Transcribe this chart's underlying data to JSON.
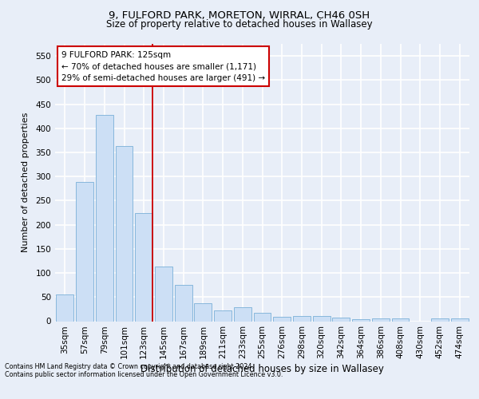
{
  "title1": "9, FULFORD PARK, MORETON, WIRRAL, CH46 0SH",
  "title2": "Size of property relative to detached houses in Wallasey",
  "xlabel": "Distribution of detached houses by size in Wallasey",
  "ylabel": "Number of detached properties",
  "bar_color": "#ccdff5",
  "bar_edge_color": "#7ab0d8",
  "categories": [
    "35sqm",
    "57sqm",
    "79sqm",
    "101sqm",
    "123sqm",
    "145sqm",
    "167sqm",
    "189sqm",
    "211sqm",
    "233sqm",
    "255sqm",
    "276sqm",
    "298sqm",
    "320sqm",
    "342sqm",
    "364sqm",
    "386sqm",
    "408sqm",
    "430sqm",
    "452sqm",
    "474sqm"
  ],
  "values": [
    55,
    289,
    427,
    364,
    224,
    113,
    75,
    38,
    22,
    29,
    17,
    9,
    10,
    10,
    8,
    4,
    5,
    5,
    0,
    5,
    5
  ],
  "ylim": [
    0,
    575
  ],
  "yticks": [
    0,
    50,
    100,
    150,
    200,
    250,
    300,
    350,
    400,
    450,
    500,
    550
  ],
  "annotation_title": "9 FULFORD PARK: 125sqm",
  "annotation_line1": "← 70% of detached houses are smaller (1,171)",
  "annotation_line2": "29% of semi-detached houses are larger (491) →",
  "vline_color": "#cc0000",
  "annotation_box_facecolor": "#ffffff",
  "annotation_box_edgecolor": "#cc0000",
  "bg_color": "#e8eef8",
  "plot_bg": "#e8eef8",
  "grid_color": "#ffffff",
  "title1_fontsize": 9.5,
  "title2_fontsize": 8.5,
  "footer1": "Contains HM Land Registry data © Crown copyright and database right 2024.",
  "footer2": "Contains public sector information licensed under the Open Government Licence v3.0."
}
